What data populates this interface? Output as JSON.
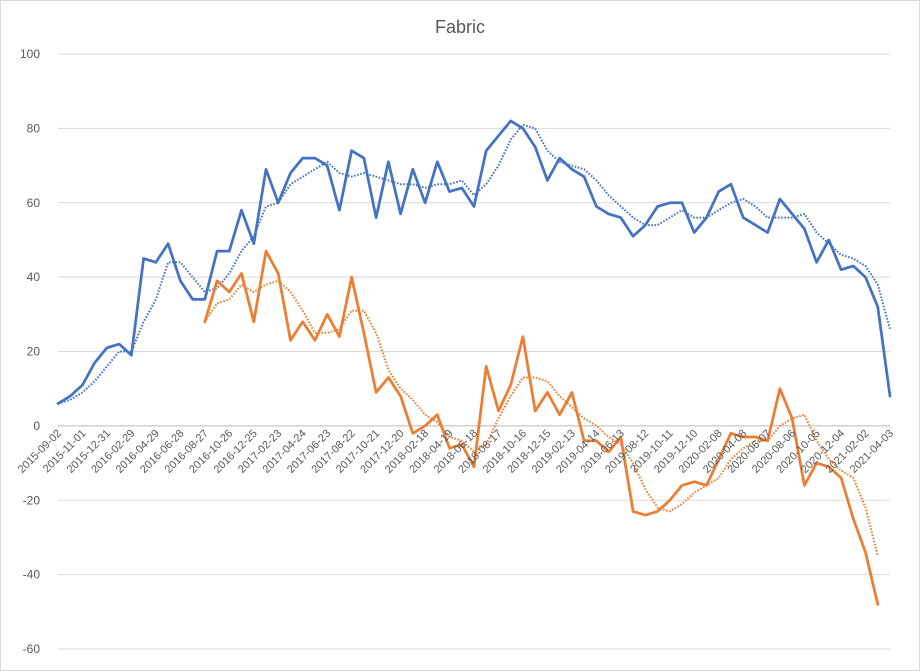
{
  "chart_data": {
    "type": "line",
    "title": "Fabric",
    "xlabel": "",
    "ylabel": "",
    "ylim": [
      -60,
      100
    ],
    "yticks": [
      -60,
      -40,
      -20,
      0,
      20,
      40,
      60,
      80,
      100
    ],
    "grid": true,
    "legend": "none",
    "x_tick_labels": [
      "2015-09-02",
      "2015-11-01",
      "2015-12-31",
      "2016-02-29",
      "2016-04-29",
      "2016-06-28",
      "2016-08-27",
      "2016-10-26",
      "2016-12-25",
      "2017-02-23",
      "2017-04-24",
      "2017-06-23",
      "2017-08-22",
      "2017-10-21",
      "2017-12-20",
      "2018-02-18",
      "2018-04-19",
      "2018-06-18",
      "2018-08-17",
      "2018-10-16",
      "2018-12-15",
      "2019-02-13",
      "2019-04-14",
      "2019-06-13",
      "2019-08-12",
      "2019-10-11",
      "2019-12-10",
      "2020-02-08",
      "2020-04-08",
      "2020-06-07",
      "2020-08-06",
      "2020-10-05",
      "2020-12-04",
      "2021-02-02",
      "2021-04-03"
    ],
    "series": [
      {
        "color": "#4472C4",
        "style": "solid",
        "values": [
          6,
          8,
          11,
          17,
          21,
          22,
          19,
          45,
          44,
          49,
          39,
          34,
          34,
          47,
          47,
          58,
          49,
          69,
          60,
          68,
          72,
          72,
          70,
          58,
          74,
          72,
          56,
          71,
          57,
          69,
          60,
          71,
          63,
          64,
          59,
          74,
          78,
          82,
          80,
          75,
          66,
          72,
          69,
          67,
          59,
          57,
          56,
          51,
          54,
          59,
          60,
          60,
          52,
          56,
          63,
          65,
          56,
          54,
          52,
          61,
          57,
          53,
          44,
          50,
          42,
          43,
          40,
          32,
          8
        ]
      },
      {
        "color": "#4472C4",
        "style": "dotted",
        "values": [
          6,
          7,
          9,
          12,
          16,
          20,
          20,
          28,
          34,
          44,
          44,
          40,
          36,
          37,
          41,
          47,
          51,
          59,
          60,
          65,
          67,
          69,
          71,
          68,
          67,
          68,
          67,
          66,
          65,
          65,
          64,
          65,
          65,
          66,
          62,
          65,
          70,
          77,
          81,
          80,
          74,
          71,
          70,
          69,
          66,
          62,
          59,
          56,
          54,
          54,
          56,
          58,
          56,
          56,
          58,
          60,
          61,
          59,
          56,
          56,
          56,
          57,
          52,
          49,
          46,
          45,
          43,
          38,
          26
        ]
      },
      {
        "color": "#ED7D31",
        "style": "solid",
        "values": [
          null,
          null,
          null,
          null,
          null,
          null,
          null,
          null,
          null,
          null,
          null,
          null,
          28,
          39,
          36,
          41,
          28,
          47,
          41,
          23,
          28,
          23,
          30,
          24,
          40,
          25,
          9,
          13,
          8,
          -2,
          0,
          3,
          -6,
          -5,
          -11,
          16,
          4,
          11,
          24,
          4,
          9,
          3,
          9,
          -4,
          -4,
          -7,
          -3,
          -23,
          -24,
          -23,
          -20,
          -16,
          -15,
          -16,
          -9,
          -2,
          -3,
          -3,
          -4,
          10,
          2,
          -16,
          -10,
          -11,
          -14,
          -25,
          -34,
          -48
        ]
      },
      {
        "color": "#ED7D31",
        "style": "dotted",
        "values": [
          null,
          null,
          null,
          null,
          null,
          null,
          null,
          null,
          null,
          null,
          null,
          null,
          28,
          33,
          34,
          38,
          36,
          38,
          39,
          36,
          31,
          25,
          25,
          26,
          31,
          31,
          25,
          15,
          10,
          7,
          3,
          1,
          -3,
          -4,
          -7,
          -5,
          2,
          8,
          13,
          13,
          12,
          8,
          5,
          2,
          0,
          -3,
          -5,
          -10,
          -17,
          -22,
          -23,
          -21,
          -18,
          -16,
          -14,
          -9,
          -6,
          -4,
          -4,
          0,
          2,
          3,
          -4,
          -9,
          -12,
          -14,
          -22,
          -35
        ]
      }
    ]
  }
}
